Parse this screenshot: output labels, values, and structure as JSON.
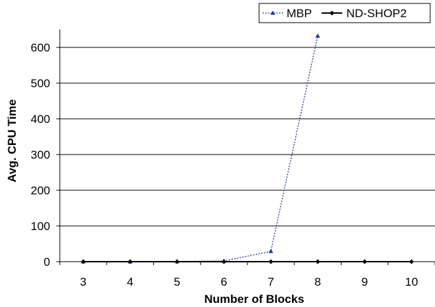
{
  "chart_data": {
    "type": "line",
    "xlabel": "Number of Blocks",
    "ylabel": "Avg. CPU Time",
    "categories": [
      "3",
      "4",
      "5",
      "6",
      "7",
      "8",
      "9",
      "10"
    ],
    "ylim": [
      0,
      700
    ],
    "yticks": [
      0,
      100,
      200,
      300,
      400,
      500,
      600
    ],
    "grid": true,
    "legend_position": "top-right",
    "series": [
      {
        "name": "MBP",
        "color": "#1f3a93",
        "line_style": "dotted",
        "marker": "triangle",
        "values": [
          0,
          0,
          0.5,
          2,
          29,
          632,
          null,
          null
        ]
      },
      {
        "name": "ND-SHOP2",
        "color": "#000000",
        "line_style": "solid",
        "marker": "diamond",
        "values": [
          0,
          0,
          0,
          0,
          0,
          0,
          0,
          0
        ]
      }
    ]
  }
}
